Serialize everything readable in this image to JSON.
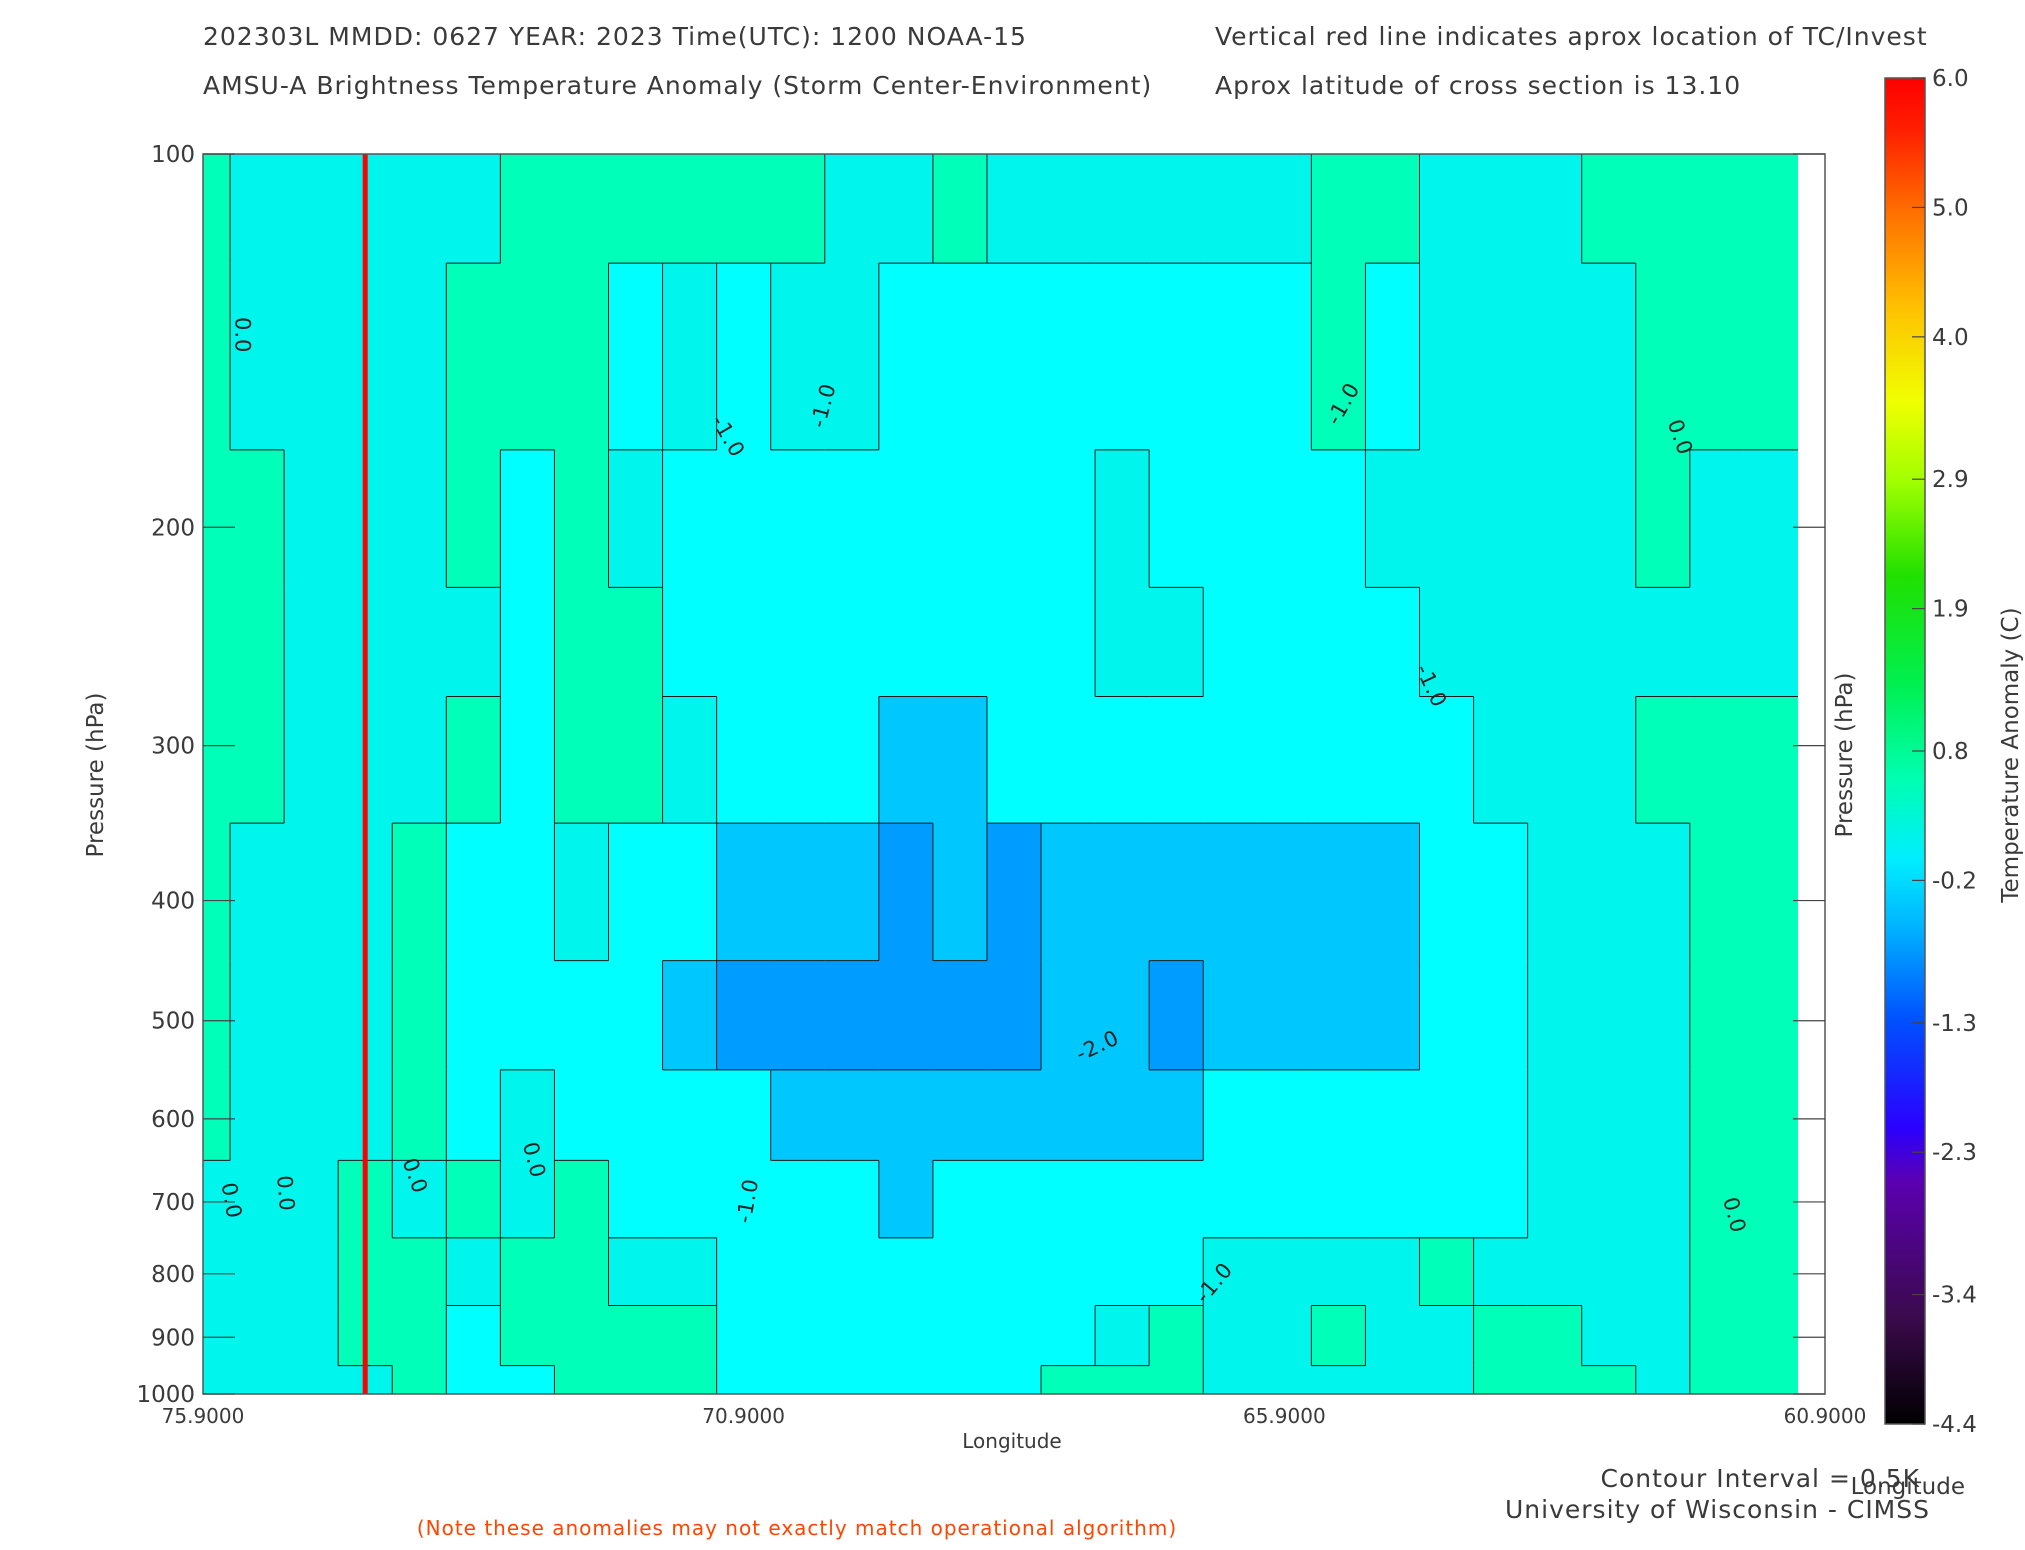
{
  "chart_data": {
    "type": "heatmap",
    "title_line1_left": "202303L  MMDD: 0627 YEAR: 2023 Time(UTC): 1200 NOAA-15",
    "title_line2_left": "AMSU-A Brightness Temperature Anomaly (Storm Center-Environment)",
    "title_line1_right": "Vertical red line indicates aprox location of TC/Invest",
    "title_line2_right": "Aprox latitude of cross section is 13.10",
    "xlabel": "Longitude",
    "xlabel_right": "Longitude",
    "ylabel": "Pressure (hPa)",
    "ylabel_right": "Pressure (hPa)",
    "colorbar_label": "Temperature Anomaly (C)",
    "x_ticks": [
      "75.9000",
      "70.9000",
      "65.9000",
      "60.9000"
    ],
    "y_ticks": [
      "100",
      "200",
      "300",
      "400",
      "500",
      "600",
      "700",
      "800",
      "900",
      "1000"
    ],
    "colorbar_ticks": [
      "6.0",
      "5.0",
      "4.0",
      "2.9",
      "1.9",
      "0.8",
      "-0.2",
      "-1.3",
      "-2.3",
      "-3.4",
      "-4.4"
    ],
    "colorbar_range": [
      -4.4,
      6.0
    ],
    "contour_labels": [
      "0.0",
      "-1.0",
      "-2.0"
    ],
    "xlim": [
      75.9,
      60.9
    ],
    "ylim": [
      100,
      1000
    ],
    "y_scale": "log",
    "tc_longitude": 74.4,
    "contour_interval_text": "Contour Interval = 0.5K",
    "credit": "University of Wisconsin - CIMSS",
    "note": "(Note these anomalies may not exactly match operational algorithm)",
    "field": {
      "longitudes": [
        75.9,
        75.4,
        74.9,
        74.4,
        73.9,
        73.4,
        72.9,
        72.4,
        71.9,
        71.4,
        70.9,
        70.4,
        69.9,
        69.4,
        68.9,
        68.4,
        67.9,
        67.4,
        66.9,
        66.4,
        65.9,
        65.4,
        64.9,
        64.4,
        63.9,
        63.4,
        62.9,
        62.4,
        61.9,
        61.4
      ],
      "pressures": [
        100,
        150,
        200,
        250,
        300,
        400,
        500,
        600,
        700,
        800,
        900,
        1000
      ],
      "anomaly": [
        [
          0.0,
          -0.5,
          -0.5,
          -0.5,
          -0.3,
          -0.3,
          -0.2,
          -0.2,
          -0.2,
          -0.2,
          -0.2,
          -0.2,
          -0.3,
          -0.3,
          -0.2,
          -0.3,
          -0.3,
          -0.3,
          -0.3,
          -0.3,
          -0.3,
          -0.2,
          -0.2,
          -0.5,
          -0.5,
          -0.5,
          -0.2,
          -0.2,
          -0.2,
          -0.2
        ],
        [
          0.0,
          -0.5,
          -0.5,
          -0.5,
          -0.3,
          -0.2,
          -0.2,
          -0.2,
          -0.6,
          -0.3,
          -0.6,
          -0.3,
          -0.3,
          -0.7,
          -0.6,
          -0.7,
          -0.8,
          -0.8,
          -0.7,
          -0.6,
          -0.6,
          -0.2,
          -0.6,
          -0.5,
          -0.5,
          -0.5,
          -0.3,
          -0.2,
          -0.2,
          -0.2
        ],
        [
          -0.2,
          -0.2,
          -0.5,
          -0.5,
          -0.5,
          -0.2,
          -0.6,
          -0.2,
          -0.3,
          -0.6,
          -0.7,
          -0.6,
          -0.8,
          -0.8,
          -0.7,
          -0.9,
          -0.8,
          -0.3,
          -0.6,
          -0.8,
          -0.7,
          -0.6,
          -0.3,
          -0.5,
          -0.5,
          -0.5,
          -0.5,
          -0.2,
          -0.3,
          -0.5
        ],
        [
          -0.2,
          -0.2,
          -0.5,
          -0.5,
          -0.5,
          -0.3,
          -0.6,
          -0.2,
          -0.2,
          -0.6,
          -0.7,
          -0.8,
          -0.8,
          -0.9,
          -0.8,
          -0.8,
          -0.8,
          -0.3,
          -0.3,
          -0.7,
          -0.8,
          -0.7,
          -0.6,
          -0.5,
          -0.5,
          -0.5,
          -0.5,
          -0.3,
          -0.3,
          -0.5
        ],
        [
          -0.2,
          -0.2,
          -0.5,
          -0.5,
          -0.3,
          -0.2,
          -0.6,
          -0.2,
          -0.2,
          -0.3,
          -0.7,
          -0.8,
          -0.8,
          -1.1,
          -1.1,
          -1.0,
          -0.8,
          -0.6,
          -0.7,
          -0.8,
          -0.7,
          -0.8,
          -0.7,
          -0.6,
          -0.5,
          -0.5,
          -0.3,
          -0.2,
          -0.2,
          -0.2
        ],
        [
          -0.2,
          -0.3,
          -0.5,
          -0.5,
          -0.2,
          -0.6,
          -0.6,
          -0.3,
          -0.7,
          -0.8,
          -1.1,
          -1.1,
          -1.1,
          -1.6,
          -1.3,
          -1.6,
          -1.1,
          -1.1,
          -1.1,
          -1.1,
          -1.1,
          -1.1,
          -1.1,
          -0.7,
          -0.6,
          -0.5,
          -0.5,
          -0.3,
          -0.2,
          -0.2
        ],
        [
          0.1,
          -0.3,
          -0.5,
          -0.5,
          -0.2,
          -0.7,
          -0.6,
          -0.7,
          -0.8,
          -1.1,
          -1.6,
          -1.7,
          -1.7,
          -2.1,
          -1.7,
          -1.6,
          -1.2,
          -1.1,
          -1.6,
          -1.1,
          -1.1,
          -1.1,
          -1.1,
          -0.8,
          -0.6,
          -0.5,
          -0.5,
          -0.3,
          -0.2,
          0.0
        ],
        [
          -0.2,
          -0.5,
          -0.3,
          -0.3,
          -0.2,
          -0.6,
          -0.3,
          -0.6,
          -0.7,
          -0.8,
          -0.8,
          -1.1,
          -1.2,
          -1.3,
          -1.1,
          -1.1,
          -1.1,
          -1.1,
          -1.1,
          -1.0,
          -0.8,
          -0.8,
          -0.7,
          -0.7,
          -0.6,
          -0.5,
          -0.5,
          -0.5,
          -0.2,
          -0.2
        ],
        [
          -0.5,
          -0.5,
          -0.5,
          -0.2,
          -0.5,
          -0.2,
          -0.5,
          -0.2,
          -0.6,
          -0.7,
          -0.8,
          -0.8,
          -0.9,
          -1.1,
          -0.9,
          -0.8,
          -0.8,
          -0.8,
          -0.8,
          -0.8,
          -0.8,
          -0.8,
          -0.8,
          -0.7,
          -0.6,
          -0.5,
          -0.5,
          -0.5,
          -0.2,
          -0.2
        ],
        [
          -0.5,
          -0.5,
          -0.5,
          -0.2,
          -0.2,
          -0.3,
          -0.2,
          -0.2,
          -0.3,
          -0.3,
          -0.7,
          -0.7,
          -0.8,
          -0.8,
          -0.8,
          -0.8,
          -0.7,
          -0.7,
          -0.6,
          -0.3,
          -0.3,
          -0.3,
          -0.3,
          -0.2,
          -0.5,
          -0.5,
          -0.5,
          -0.5,
          -0.2,
          -0.2
        ],
        [
          -0.5,
          -0.5,
          -0.5,
          -0.2,
          -0.2,
          -0.6,
          -0.2,
          -0.2,
          -0.2,
          -0.2,
          -0.7,
          -0.7,
          -0.7,
          -0.7,
          -0.7,
          -0.6,
          -0.6,
          -0.3,
          -0.2,
          -0.5,
          -0.5,
          -0.2,
          -0.5,
          -0.5,
          -0.2,
          -0.2,
          -0.5,
          -0.5,
          -0.2,
          -0.2
        ],
        [
          -0.5,
          -0.5,
          -0.5,
          -0.5,
          -0.2,
          -0.6,
          -0.7,
          -0.2,
          -0.2,
          -0.2,
          -0.7,
          -0.7,
          -0.7,
          -0.7,
          -0.7,
          -0.6,
          -0.2,
          -0.2,
          -0.2,
          -0.5,
          -0.5,
          -0.5,
          -0.5,
          -0.5,
          -0.2,
          -0.2,
          -0.2,
          -0.5,
          -0.2,
          -0.2
        ]
      ]
    }
  }
}
